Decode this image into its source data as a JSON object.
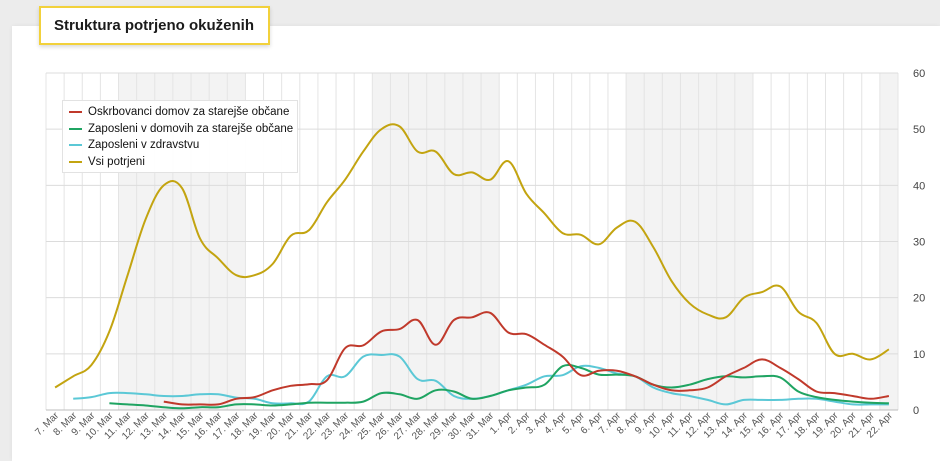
{
  "chart_data": {
    "type": "line",
    "title": "Struktura potrjeno okuženih",
    "xlabel": "",
    "ylabel": "",
    "ylim": [
      0,
      60
    ],
    "yticks": [
      0,
      10,
      20,
      30,
      40,
      50,
      60
    ],
    "grid": true,
    "legend_position": "top-left",
    "categories": [
      "7. Mar",
      "8. Mar",
      "9. Mar",
      "10. Mar",
      "11. Mar",
      "12. Mar",
      "13. Mar",
      "14. Mar",
      "15. Mar",
      "16. Mar",
      "17. Mar",
      "18. Mar",
      "19. Mar",
      "20. Mar",
      "21. Mar",
      "22. Mar",
      "23. Mar",
      "24. Mar",
      "25. Mar",
      "26. Mar",
      "27. Mar",
      "28. Mar",
      "29. Mar",
      "30. Mar",
      "31. Mar",
      "1. Apr",
      "2. Apr",
      "3. Apr",
      "4. Apr",
      "5. Apr",
      "6. Apr",
      "7. Apr",
      "8. Apr",
      "9. Apr",
      "10. Apr",
      "11. Apr",
      "12. Apr",
      "13. Apr",
      "14. Apr",
      "15. Apr",
      "16. Apr",
      "17. Apr",
      "18. Apr",
      "19. Apr",
      "20. Apr",
      "21. Apr",
      "22. Apr"
    ],
    "series": [
      {
        "name": "Oskrbovanci domov za starejše občane",
        "color": "#c0392b",
        "values": [
          null,
          null,
          null,
          null,
          null,
          null,
          1.5,
          1,
          1,
          1,
          2,
          2.3,
          3.5,
          4.3,
          4.6,
          5.3,
          11,
          11.5,
          14,
          14.4,
          16,
          11.6,
          16,
          16.5,
          17.3,
          13.8,
          13.5,
          11.6,
          9.5,
          6.2,
          7,
          7,
          6,
          4.5,
          3.5,
          3.5,
          4,
          6,
          7.5,
          9,
          7.5,
          5.5,
          3.3,
          3,
          2.5,
          2,
          2.5
        ]
      },
      {
        "name": "Zaposleni v domovih za starejše občane",
        "color": "#1fa462",
        "values": [
          null,
          null,
          null,
          1.2,
          1,
          0.8,
          0.5,
          0.3,
          0.5,
          0.5,
          1,
          1,
          0.8,
          1,
          1.3,
          1.3,
          1.3,
          1.5,
          3,
          2.8,
          2,
          3.5,
          3.3,
          2,
          2.5,
          3.5,
          4,
          4.5,
          7.8,
          7.5,
          6.3,
          6.3,
          6,
          4.5,
          4,
          4.5,
          5.5,
          6,
          5.8,
          6,
          5.8,
          3.3,
          2.3,
          1.8,
          1.5,
          1.3,
          1.2
        ]
      },
      {
        "name": "Zaposleni v zdravstvu",
        "color": "#5bc8d6",
        "values": [
          null,
          2,
          2.3,
          3,
          3,
          2.8,
          2.5,
          2.5,
          2.8,
          2.8,
          2.2,
          2,
          1.2,
          1.2,
          1.5,
          6,
          6,
          9.5,
          9.8,
          9.5,
          5.5,
          5.2,
          2.5,
          2,
          2.5,
          3.5,
          4.5,
          6,
          6.2,
          7.8,
          7.5,
          6.5,
          6,
          4,
          3,
          2.5,
          1.8,
          1,
          1.8,
          1.8,
          1.8,
          2,
          2,
          1.5,
          1,
          1,
          1
        ]
      },
      {
        "name": "Vsi potrjeni",
        "color": "#c3a410",
        "values": [
          4,
          6,
          8,
          14,
          24,
          34,
          40,
          39.5,
          30.5,
          27,
          24,
          24,
          26,
          31,
          32,
          37,
          41,
          46,
          50,
          50.5,
          46,
          46,
          42,
          42.3,
          41,
          44.3,
          38.5,
          35,
          31.5,
          31.2,
          29.5,
          32.5,
          33.5,
          29,
          23,
          19,
          17,
          16.5,
          20,
          21,
          22,
          17.5,
          15.5,
          10,
          10,
          9,
          10.8
        ]
      }
    ]
  }
}
